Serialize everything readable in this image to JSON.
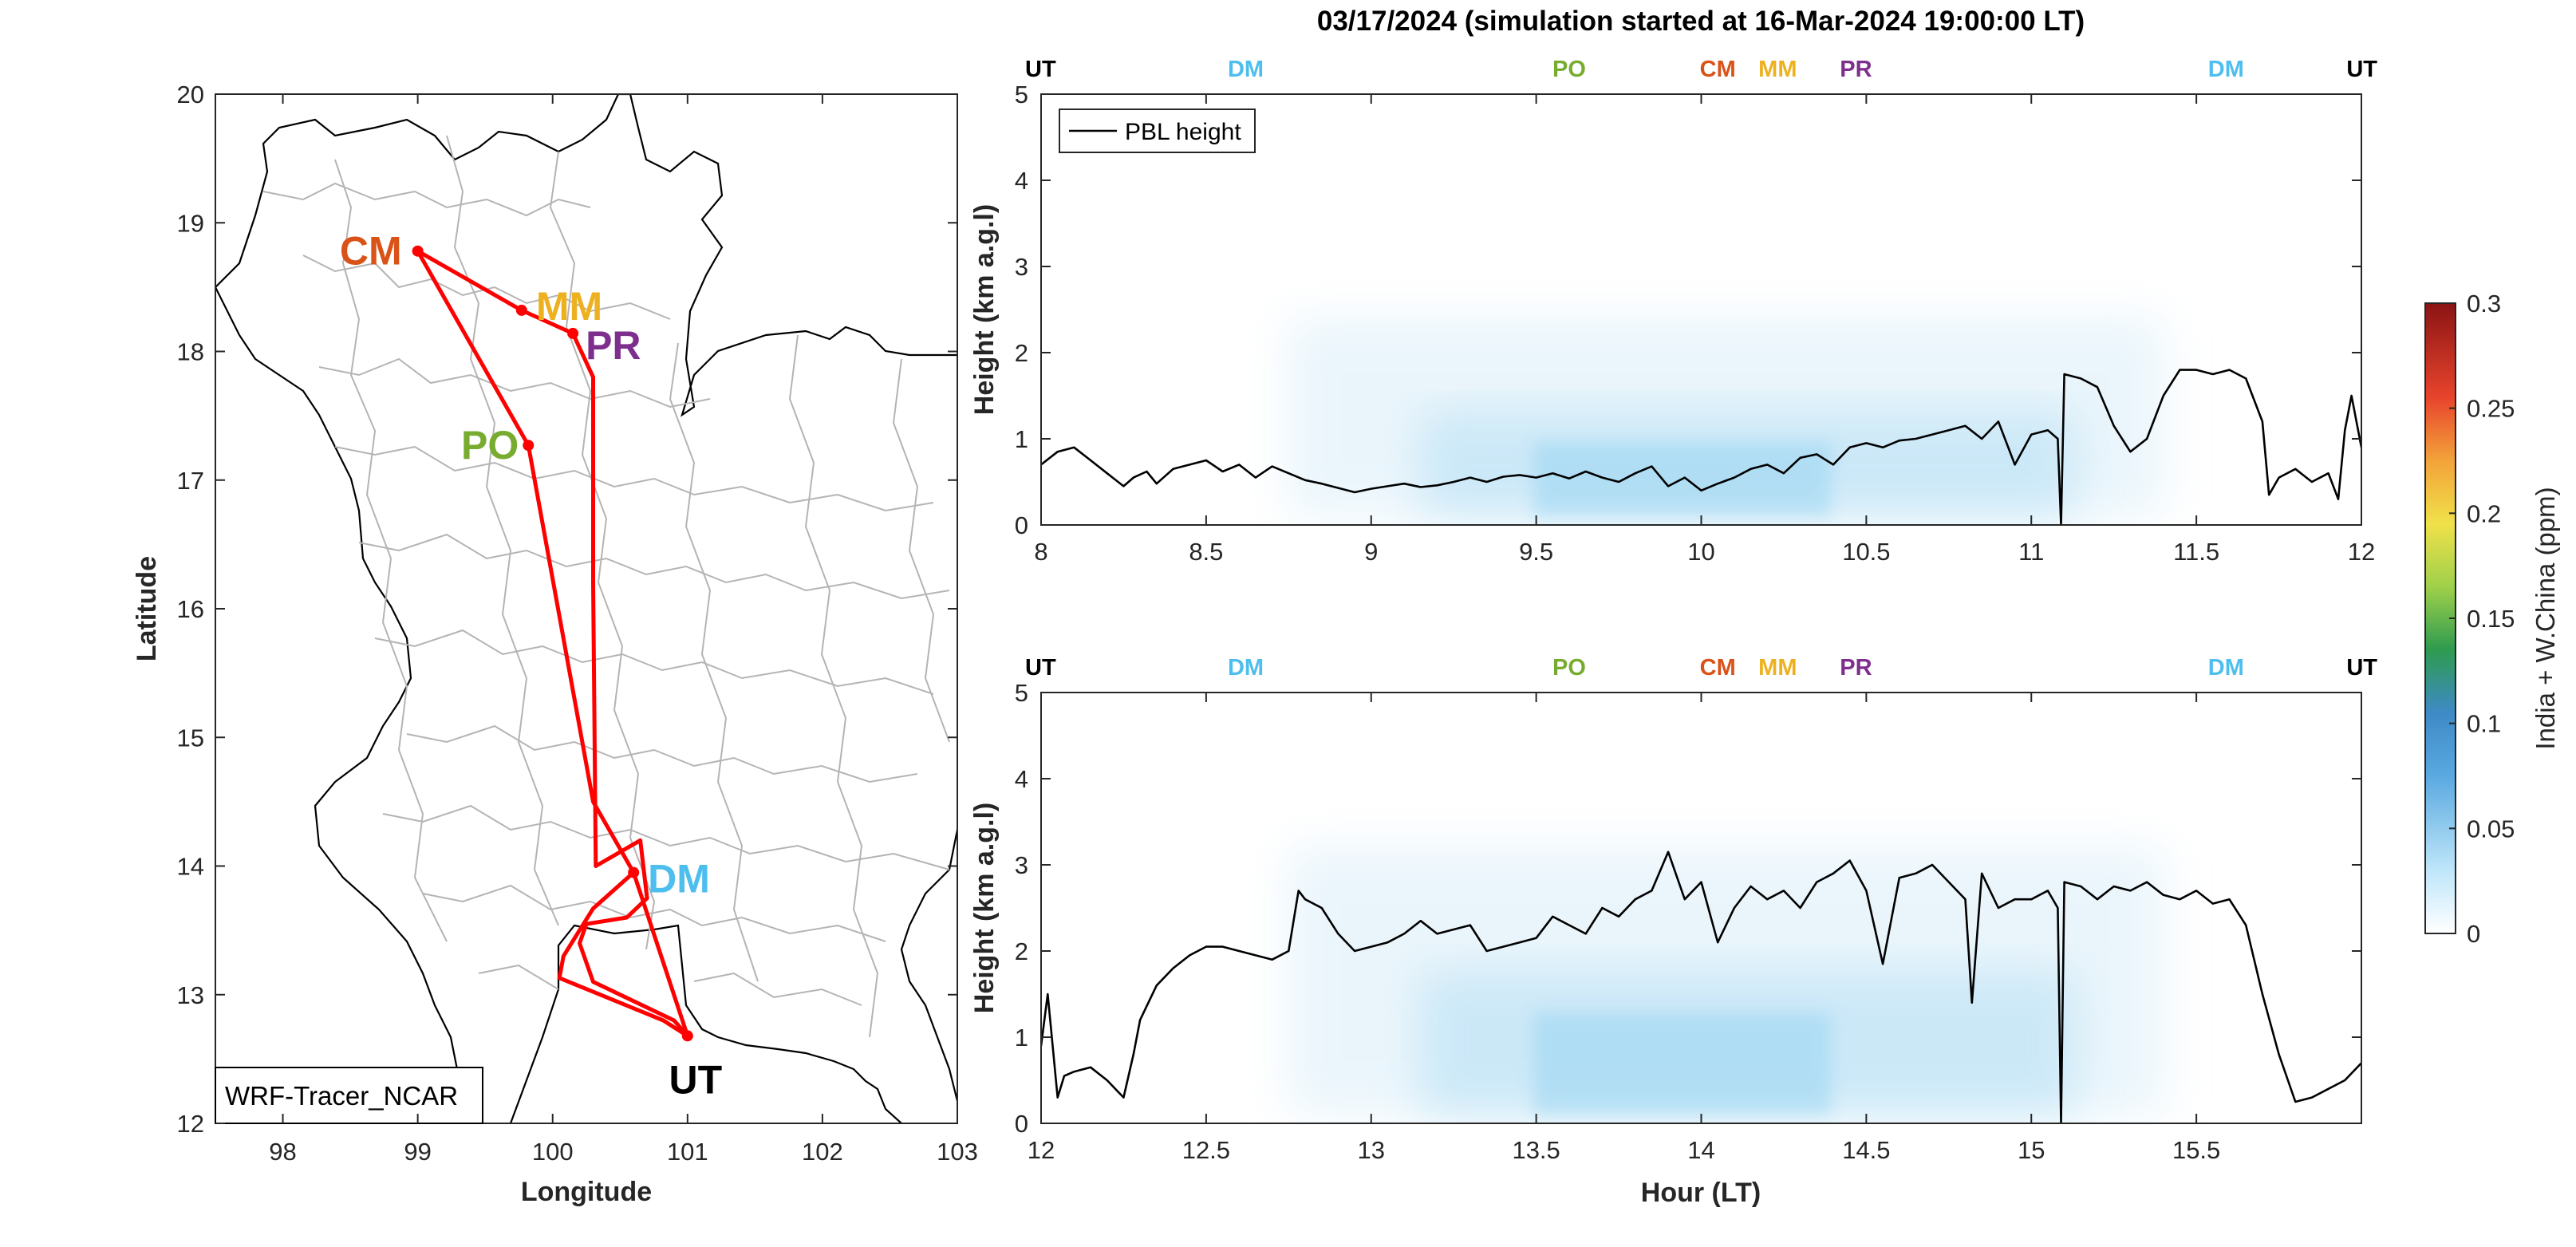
{
  "title": "03/17/2024 (simulation started at 16-Mar-2024 19:00:00 LT)",
  "colors": {
    "CM": "#D95319",
    "MM": "#EDB120",
    "PR": "#7E2F8E",
    "PO": "#77AC30",
    "DM": "#4DBEEE",
    "UT": "#000000",
    "route": "#FF0000",
    "boundary": "#B4B4B4",
    "coast": "#000000",
    "tracer_low": "#FFFFFF",
    "tracer_high": "#7FC6EA"
  },
  "map": {
    "xlabel": "Longitude",
    "ylabel": "Latitude",
    "xlim": [
      97.5,
      103
    ],
    "ylim": [
      12,
      20
    ],
    "xticks": [
      "98",
      "99",
      "100",
      "101",
      "102",
      "103"
    ],
    "yticks": [
      "12",
      "13",
      "14",
      "15",
      "16",
      "17",
      "18",
      "19",
      "20"
    ],
    "model_label": "WRF-Tracer_NCAR",
    "sites": [
      {
        "code": "CM",
        "lon": 99.0,
        "lat": 18.78
      },
      {
        "code": "MM",
        "lon": 99.77,
        "lat": 18.32
      },
      {
        "code": "PR",
        "lon": 100.15,
        "lat": 18.14
      },
      {
        "code": "PO",
        "lon": 99.82,
        "lat": 17.27
      },
      {
        "code": "DM",
        "lon": 100.6,
        "lat": 13.95
      },
      {
        "code": "UT",
        "lon": 101.0,
        "lat": 12.68
      }
    ],
    "route": [
      [
        101.0,
        12.68
      ],
      [
        100.6,
        13.95
      ],
      [
        100.3,
        13.67
      ],
      [
        100.08,
        13.3
      ],
      [
        100.05,
        13.13
      ],
      [
        100.82,
        12.8
      ],
      [
        101.0,
        12.68
      ],
      [
        100.9,
        12.8
      ],
      [
        100.3,
        13.1
      ],
      [
        100.2,
        13.4
      ],
      [
        100.25,
        13.55
      ],
      [
        100.55,
        13.6
      ],
      [
        100.7,
        13.75
      ],
      [
        100.65,
        14.2
      ],
      [
        100.32,
        14.0
      ],
      [
        100.3,
        16.2
      ],
      [
        100.3,
        17.8
      ],
      [
        100.15,
        18.14
      ],
      [
        99.77,
        18.32
      ],
      [
        99.0,
        18.78
      ],
      [
        99.82,
        17.27
      ],
      [
        100.3,
        14.5
      ],
      [
        100.6,
        13.95
      ]
    ]
  },
  "colorbar": {
    "label": "India + W.China (ppm)",
    "ticks": [
      "0",
      "0.05",
      "0.1",
      "0.15",
      "0.2",
      "0.25",
      "0.3"
    ],
    "lim": [
      0,
      0.3
    ]
  },
  "timeline_markers": [
    {
      "code": "UT",
      "offset_h": 0.0
    },
    {
      "code": "DM",
      "offset_h": 0.62
    },
    {
      "code": "PO",
      "offset_h": 1.6
    },
    {
      "code": "CM",
      "offset_h": 2.05
    },
    {
      "code": "MM",
      "offset_h": 2.29
    },
    {
      "code": "PR",
      "offset_h": 2.42
    },
    {
      "code": "DM",
      "offset_h": 3.59
    },
    {
      "code": "UT",
      "offset_h": 4.0
    }
  ],
  "chart_data": [
    {
      "type": "area",
      "name": "upper",
      "xlim": [
        8,
        12
      ],
      "ylim": [
        0,
        5
      ],
      "xticks": [
        "8",
        "8.5",
        "9",
        "9.5",
        "10",
        "10.5",
        "11",
        "11.5",
        "12"
      ],
      "yticks": [
        "0",
        "1",
        "2",
        "3",
        "4",
        "5"
      ],
      "xlabel": "",
      "ylabel": "Height (km a.g.l)",
      "legend": "PBL height",
      "legend_position": "top-left",
      "tracer_span": [
        8.75,
        11.4
      ],
      "tracer_max_height": 2.4,
      "series": [
        {
          "name": "PBL height",
          "x": [
            8.0,
            8.05,
            8.1,
            8.15,
            8.2,
            8.25,
            8.28,
            8.32,
            8.35,
            8.4,
            8.45,
            8.5,
            8.55,
            8.6,
            8.65,
            8.7,
            8.75,
            8.8,
            8.85,
            8.9,
            8.95,
            9.0,
            9.05,
            9.1,
            9.15,
            9.2,
            9.25,
            9.3,
            9.35,
            9.4,
            9.45,
            9.5,
            9.55,
            9.6,
            9.65,
            9.7,
            9.75,
            9.8,
            9.85,
            9.9,
            9.95,
            10.0,
            10.05,
            10.1,
            10.15,
            10.2,
            10.25,
            10.3,
            10.35,
            10.4,
            10.45,
            10.5,
            10.55,
            10.6,
            10.65,
            10.7,
            10.75,
            10.8,
            10.85,
            10.9,
            10.95,
            11.0,
            11.05,
            11.08,
            11.09,
            11.1,
            11.15,
            11.2,
            11.25,
            11.3,
            11.35,
            11.4,
            11.45,
            11.5,
            11.55,
            11.6,
            11.65,
            11.7,
            11.72,
            11.75,
            11.8,
            11.85,
            11.9,
            11.93,
            11.95,
            11.97,
            12.0
          ],
          "values": [
            0.7,
            0.85,
            0.9,
            0.75,
            0.6,
            0.45,
            0.55,
            0.62,
            0.48,
            0.65,
            0.7,
            0.75,
            0.62,
            0.7,
            0.55,
            0.68,
            0.6,
            0.52,
            0.48,
            0.43,
            0.38,
            0.42,
            0.45,
            0.48,
            0.44,
            0.46,
            0.5,
            0.55,
            0.5,
            0.56,
            0.58,
            0.55,
            0.6,
            0.54,
            0.62,
            0.55,
            0.5,
            0.6,
            0.68,
            0.45,
            0.55,
            0.4,
            0.48,
            0.55,
            0.65,
            0.7,
            0.6,
            0.78,
            0.82,
            0.7,
            0.9,
            0.95,
            0.9,
            0.98,
            1.0,
            1.05,
            1.1,
            1.15,
            1.0,
            1.2,
            0.7,
            1.05,
            1.1,
            1.0,
            0.0,
            1.75,
            1.7,
            1.6,
            1.15,
            0.85,
            1.0,
            1.5,
            1.8,
            1.8,
            1.75,
            1.8,
            1.7,
            1.2,
            0.35,
            0.55,
            0.65,
            0.5,
            0.6,
            0.3,
            1.1,
            1.5,
            0.9
          ]
        }
      ]
    },
    {
      "type": "area",
      "name": "lower",
      "xlim": [
        12,
        16
      ],
      "ylim": [
        0,
        5
      ],
      "xticks": [
        "12",
        "12.5",
        "13",
        "13.5",
        "14",
        "14.5",
        "15",
        "15.5"
      ],
      "yticks": [
        "0",
        "1",
        "2",
        "3",
        "4",
        "5"
      ],
      "xlabel": "Hour (LT)",
      "ylabel": "Height (km a.g.l)",
      "tracer_span": [
        12.75,
        15.4
      ],
      "tracer_max_height": 3.2,
      "series": [
        {
          "name": "PBL height",
          "x": [
            12.0,
            12.02,
            12.05,
            12.07,
            12.1,
            12.15,
            12.2,
            12.25,
            12.28,
            12.3,
            12.35,
            12.4,
            12.45,
            12.5,
            12.55,
            12.6,
            12.65,
            12.7,
            12.75,
            12.78,
            12.8,
            12.85,
            12.9,
            12.95,
            13.0,
            13.05,
            13.1,
            13.15,
            13.2,
            13.25,
            13.3,
            13.35,
            13.4,
            13.45,
            13.5,
            13.55,
            13.6,
            13.65,
            13.7,
            13.75,
            13.8,
            13.85,
            13.9,
            13.95,
            14.0,
            14.05,
            14.1,
            14.15,
            14.2,
            14.25,
            14.3,
            14.35,
            14.4,
            14.45,
            14.5,
            14.55,
            14.6,
            14.65,
            14.7,
            14.75,
            14.8,
            14.82,
            14.85,
            14.9,
            14.95,
            15.0,
            15.05,
            15.08,
            15.09,
            15.1,
            15.15,
            15.2,
            15.25,
            15.3,
            15.35,
            15.4,
            15.45,
            15.5,
            15.55,
            15.6,
            15.65,
            15.7,
            15.75,
            15.8,
            15.85,
            15.9,
            15.95,
            16.0
          ],
          "values": [
            0.9,
            1.5,
            0.3,
            0.55,
            0.6,
            0.65,
            0.5,
            0.3,
            0.8,
            1.2,
            1.6,
            1.8,
            1.95,
            2.05,
            2.05,
            2.0,
            1.95,
            1.9,
            2.0,
            2.7,
            2.6,
            2.5,
            2.2,
            2.0,
            2.05,
            2.1,
            2.2,
            2.35,
            2.2,
            2.25,
            2.3,
            2.0,
            2.05,
            2.1,
            2.15,
            2.4,
            2.3,
            2.2,
            2.5,
            2.4,
            2.6,
            2.7,
            3.15,
            2.6,
            2.8,
            2.1,
            2.5,
            2.75,
            2.6,
            2.7,
            2.5,
            2.8,
            2.9,
            3.05,
            2.7,
            1.85,
            2.85,
            2.9,
            3.0,
            2.8,
            2.6,
            1.4,
            2.9,
            2.5,
            2.6,
            2.6,
            2.7,
            2.5,
            0.0,
            2.8,
            2.75,
            2.6,
            2.75,
            2.7,
            2.8,
            2.65,
            2.6,
            2.7,
            2.55,
            2.6,
            2.3,
            1.5,
            0.8,
            0.25,
            0.3,
            0.4,
            0.5,
            0.7
          ]
        }
      ]
    }
  ]
}
